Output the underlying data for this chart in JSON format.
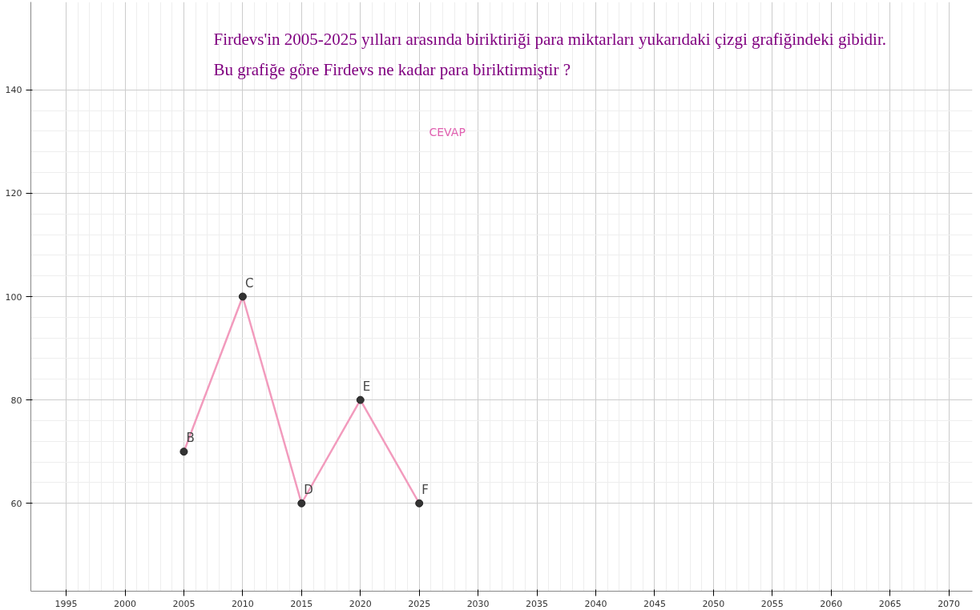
{
  "chart_data": {
    "type": "line",
    "title": "Firdevs'in 2005-2025 yılları arasında biriktiriği para miktarları yukarıdaki çizgi grafiğindeki gibidir.",
    "subtitle": "Bu grafiğe göre Firdevs ne kadar para biriktirmiştir ?",
    "x": [
      2005,
      2010,
      2015,
      2020,
      2025
    ],
    "series": [
      {
        "color": "#f29bbd",
        "values": [
          70,
          100,
          60,
          80,
          60
        ]
      }
    ],
    "xlim": [
      1992,
      2072
    ],
    "ylim": [
      43,
      157
    ],
    "xticks": [
      1995,
      2000,
      2005,
      2010,
      2015,
      2020,
      2025,
      2030,
      2035,
      2040,
      2045,
      2050,
      2055,
      2060,
      2065,
      2070
    ],
    "yticks": [
      60,
      80,
      100,
      120,
      140
    ],
    "grid": true,
    "marker": "circle",
    "line_style": "solid",
    "annotations": [
      "CEVAP",
      {
        "text": "B",
        "x": 2005,
        "y": 70
      },
      {
        "text": "C",
        "x": 2010,
        "y": 100
      },
      {
        "text": "D",
        "x": 2015,
        "y": 60
      },
      {
        "text": "E",
        "x": 2020,
        "y": 80
      },
      {
        "text": "F",
        "x": 2025,
        "y": 60
      }
    ]
  }
}
